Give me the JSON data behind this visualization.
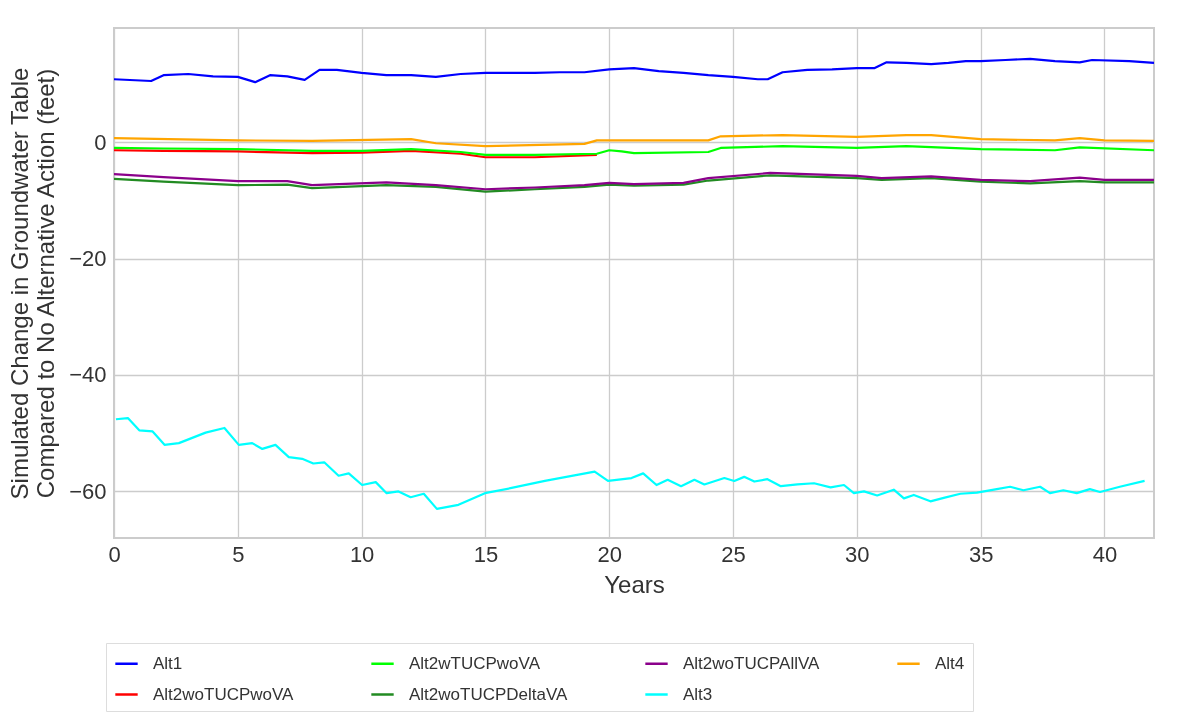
{
  "chart_data": {
    "type": "line",
    "xlabel": "Years",
    "ylabel": "Simulated Change in Groundwater Table\nCompared to No Alternative Action (feet)",
    "xlim": [
      0,
      42
    ],
    "ylim": [
      -68,
      19.6
    ],
    "xticks": [
      0,
      5,
      10,
      15,
      20,
      25,
      30,
      35,
      40
    ],
    "yticks": [
      -60,
      -40,
      -20,
      0
    ],
    "grid": true,
    "legend": "bottom",
    "marker": "none",
    "line_style": "solid",
    "series": [
      {
        "name": "Alt1",
        "color": "#0000ff",
        "x": [
          0,
          1.5,
          2,
          3,
          4,
          5,
          5.7,
          6.3,
          7,
          7.7,
          8.3,
          9,
          10,
          11,
          12,
          13,
          14,
          15,
          17,
          18,
          19,
          20,
          21,
          22,
          23,
          24,
          25,
          26,
          26.4,
          27,
          28,
          29,
          30,
          30.7,
          31.2,
          32,
          33,
          33.7,
          34.4,
          35,
          36,
          37,
          38,
          39,
          39.5,
          41,
          42
        ],
        "values": [
          10.8,
          10.5,
          11.5,
          11.7,
          11.3,
          11.2,
          10.3,
          11.5,
          11.3,
          10.7,
          12.4,
          12.4,
          11.9,
          11.5,
          11.5,
          11.2,
          11.7,
          11.9,
          11.9,
          12,
          12,
          12.5,
          12.7,
          12.2,
          11.9,
          11.5,
          11.2,
          10.8,
          10.8,
          12,
          12.4,
          12.5,
          12.7,
          12.7,
          13.7,
          13.6,
          13.4,
          13.6,
          13.9,
          13.9,
          14.1,
          14.3,
          13.9,
          13.7,
          14.1,
          13.9,
          13.6
        ]
      },
      {
        "name": "Alt2woTUCPwoVA",
        "color": "#ff0000",
        "x": [
          0,
          2,
          5,
          8,
          10,
          12,
          14,
          15,
          17,
          19.5
        ],
        "values": [
          -1.4,
          -1.5,
          -1.6,
          -1.9,
          -1.8,
          -1.5,
          -2,
          -2.6,
          -2.6,
          -2.2
        ]
      },
      {
        "name": "Alt2wTUCPwoVA",
        "color": "#00ff00",
        "x": [
          0,
          2,
          5,
          8,
          10,
          12,
          14,
          15,
          17,
          19.5,
          20,
          20.5,
          21,
          24,
          24.5,
          27,
          30,
          32,
          35,
          38,
          39,
          42
        ],
        "values": [
          -1,
          -1.1,
          -1.2,
          -1.5,
          -1.5,
          -1.2,
          -1.7,
          -2.2,
          -2.2,
          -2,
          -1.4,
          -1.6,
          -1.9,
          -1.7,
          -1,
          -0.7,
          -1,
          -0.7,
          -1.2,
          -1.4,
          -0.9,
          -1.4
        ]
      },
      {
        "name": "Alt2woTUCPDeltaVA",
        "color": "#228b22",
        "x": [
          0,
          2,
          5,
          7,
          8,
          11,
          13,
          15,
          17,
          19,
          20,
          21,
          23,
          24,
          26.5,
          30,
          31,
          33,
          35,
          37,
          39,
          40,
          42
        ],
        "values": [
          -6.3,
          -6.8,
          -7.4,
          -7.3,
          -7.9,
          -7.4,
          -7.7,
          -8.5,
          -8.1,
          -7.7,
          -7.3,
          -7.5,
          -7.3,
          -6.6,
          -5.7,
          -6.2,
          -6.5,
          -6.2,
          -6.8,
          -7.1,
          -6.7,
          -6.9,
          -6.9
        ]
      },
      {
        "name": "Alt2woTUCPAllVA",
        "color": "#8b008b",
        "x": [
          0,
          2,
          5,
          7,
          8,
          11,
          13,
          15,
          17,
          19,
          20,
          21,
          23,
          24,
          26.5,
          30,
          31,
          33,
          35,
          37,
          39,
          40,
          42
        ],
        "values": [
          -5.5,
          -6,
          -6.7,
          -6.7,
          -7.4,
          -6.9,
          -7.4,
          -8.1,
          -7.8,
          -7.4,
          -7,
          -7.2,
          -7,
          -6.2,
          -5.3,
          -5.8,
          -6.2,
          -5.9,
          -6.5,
          -6.7,
          -6.1,
          -6.5,
          -6.5
        ]
      },
      {
        "name": "Alt3",
        "color": "#00ffff",
        "x": [
          0.08,
          0.56,
          1.02,
          1.56,
          2.04,
          2.62,
          3.7,
          4.46,
          5.04,
          5.58,
          5.99,
          6.52,
          7.06,
          7.6,
          8.05,
          8.49,
          9.07,
          9.48,
          10.02,
          10.57,
          11.01,
          11.49,
          11.98,
          12.51,
          13.04,
          13.91,
          14.98,
          16.06,
          17.4,
          19.41,
          19.95,
          20.9,
          21.37,
          21.91,
          22.36,
          22.9,
          23.44,
          23.84,
          24.65,
          25.05,
          25.45,
          25.86,
          26.39,
          26.93,
          27.6,
          28.27,
          28.94,
          29.48,
          29.88,
          30.29,
          30.82,
          31.49,
          31.9,
          32.3,
          32.97,
          33.51,
          34.18,
          34.85,
          35.65,
          36.19,
          36.73,
          37.4,
          37.8,
          38.34,
          38.88,
          39.41,
          39.82,
          40.62,
          41.62
        ],
        "values": [
          -47.6,
          -47.4,
          -49.5,
          -49.7,
          -52,
          -51.7,
          -49.9,
          -49.1,
          -52,
          -51.7,
          -52.7,
          -52,
          -54.1,
          -54.4,
          -55.2,
          -55,
          -57.3,
          -56.9,
          -58.9,
          -58.4,
          -60.3,
          -60,
          -61,
          -60.4,
          -63,
          -62.3,
          -60.3,
          -59.4,
          -58.2,
          -56.6,
          -58.2,
          -57.7,
          -56.9,
          -58.9,
          -58,
          -59.1,
          -58,
          -58.8,
          -57.7,
          -58.2,
          -57.5,
          -58.3,
          -57.9,
          -59.1,
          -58.8,
          -58.6,
          -59.3,
          -58.9,
          -60.3,
          -60,
          -60.7,
          -59.7,
          -61.2,
          -60.6,
          -61.7,
          -61.1,
          -60.4,
          -60.2,
          -59.6,
          -59.2,
          -59.8,
          -59.2,
          -60.3,
          -59.8,
          -60.3,
          -59.6,
          -60.1,
          -59.2,
          -58.2
        ]
      },
      {
        "name": "Alt4",
        "color": "#ffa500",
        "x": [
          0,
          5,
          8,
          12,
          13,
          15,
          19,
          19.5,
          20.6,
          24,
          24.5,
          27,
          30,
          32,
          33,
          35,
          38,
          39,
          40,
          42
        ],
        "values": [
          0.7,
          0.3,
          0.2,
          0.5,
          -0.2,
          -0.7,
          -0.3,
          0.3,
          0.3,
          0.3,
          1,
          1.2,
          0.9,
          1.2,
          1.2,
          0.5,
          0.3,
          0.7,
          0.3,
          0.2
        ]
      }
    ]
  }
}
